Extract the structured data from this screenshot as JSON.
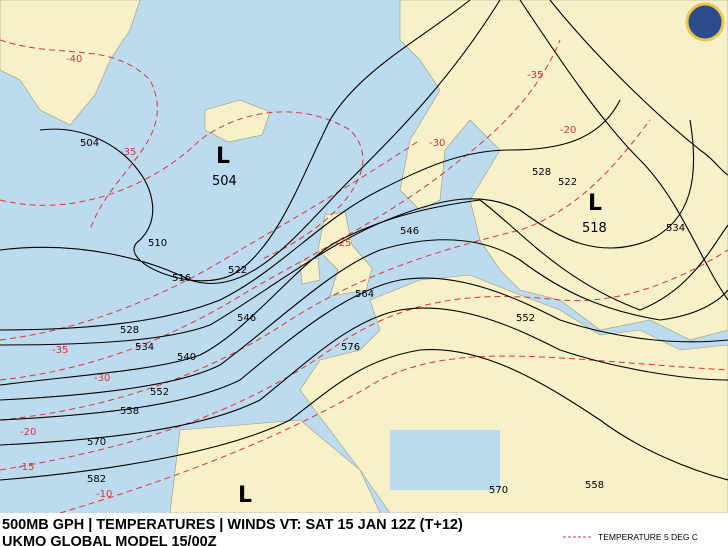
{
  "header": {
    "title": "500MB GPH | TEMPERATURES | WINDS VT: SAT 15 JAN 12Z (T+12)",
    "subtitle": "UKMO GLOBAL MODEL 15/00Z"
  },
  "legend": {
    "label": "TEMPERATURE 5 DEG C"
  },
  "lows": [
    {
      "label": "L",
      "value": 504
    },
    {
      "label": "L",
      "value": 518
    },
    {
      "label": "L"
    }
  ],
  "contour_labels": [
    504,
    510,
    516,
    522,
    528,
    534,
    540,
    546,
    552,
    558,
    570,
    582,
    546,
    564,
    576,
    552,
    528,
    522,
    534,
    570,
    558
  ],
  "temperature_labels": [
    -40,
    -35,
    -35,
    -30,
    -20,
    -15,
    -10,
    -35,
    -30,
    -20,
    -25
  ]
}
